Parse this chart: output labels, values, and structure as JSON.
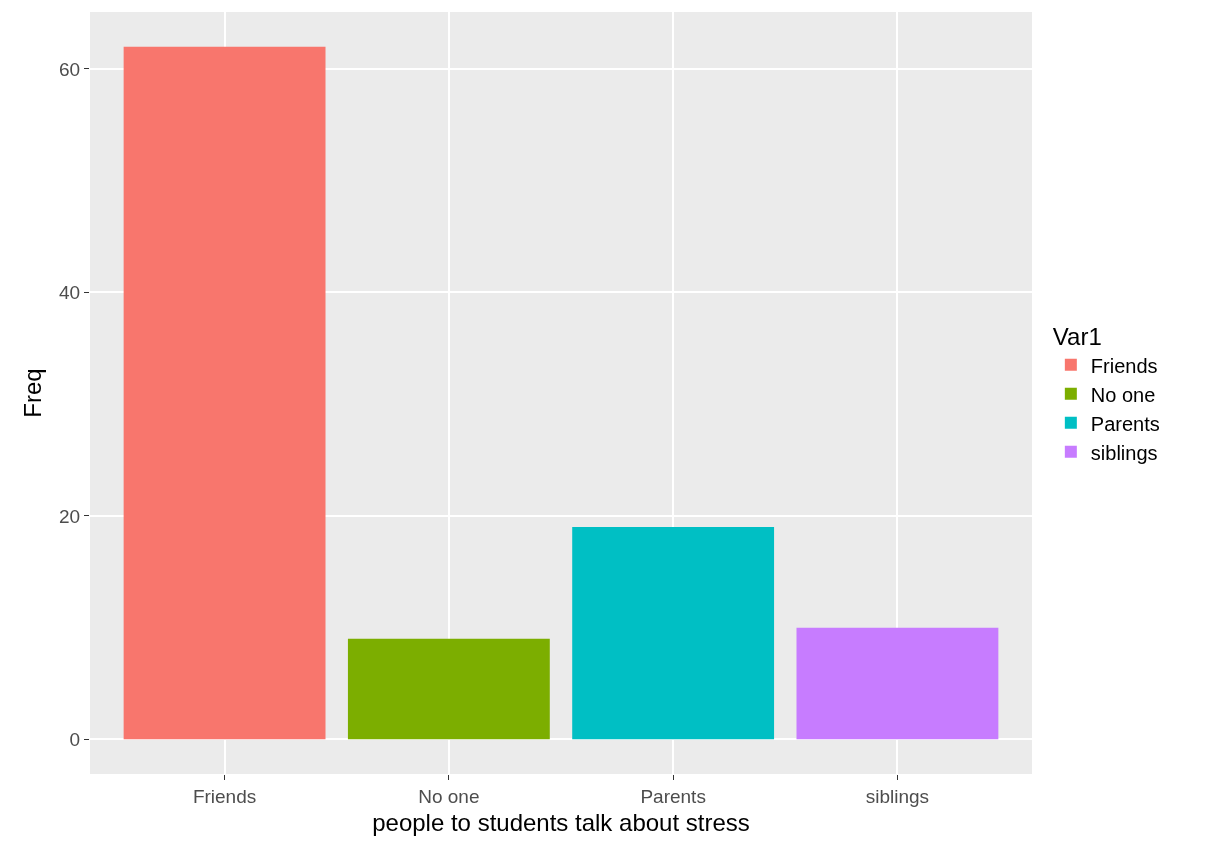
{
  "chart_data": {
    "type": "bar",
    "xlabel": "people to students talk about stress",
    "ylabel": "Freq",
    "legend_title": "Var1",
    "categories": [
      "Friends",
      "No one",
      "Parents",
      "siblings"
    ],
    "series": [
      {
        "name": "Friends",
        "color": "#f8766d",
        "values": [
          62,
          null,
          null,
          null
        ]
      },
      {
        "name": "No one",
        "color": "#7cae00",
        "values": [
          null,
          9,
          null,
          null
        ]
      },
      {
        "name": "Parents",
        "color": "#00bfc4",
        "values": [
          null,
          null,
          19,
          null
        ]
      },
      {
        "name": "siblings",
        "color": "#c77cff",
        "values": [
          null,
          null,
          null,
          10
        ]
      }
    ],
    "ylim": [
      -3.1,
      65.1
    ],
    "yticks": [
      0,
      20,
      40,
      60
    ],
    "grid": true,
    "legend": "right"
  }
}
